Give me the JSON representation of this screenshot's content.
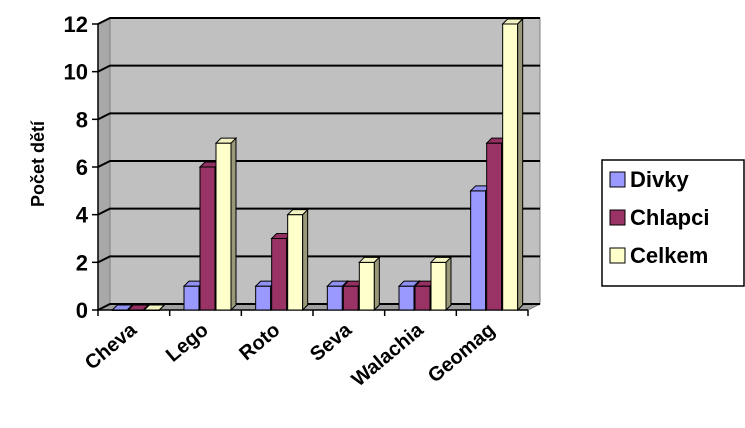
{
  "chart_data": {
    "type": "bar",
    "style": "3d-clustered-column",
    "categories": [
      "Cheva",
      "Lego",
      "Roto",
      "Seva",
      "Walachia",
      "Geomag"
    ],
    "series": [
      {
        "name": "Divky",
        "values": [
          0,
          1,
          1,
          1,
          1,
          5
        ],
        "color": "#9999ff"
      },
      {
        "name": "Chlapci",
        "values": [
          0,
          6,
          3,
          1,
          1,
          7
        ],
        "color": "#993366"
      },
      {
        "name": "Celkem",
        "values": [
          0,
          7,
          4,
          2,
          2,
          12
        ],
        "color": "#ffffcc"
      }
    ],
    "title": "",
    "xlabel": "",
    "ylabel": "Počet dětí",
    "ylim": [
      0,
      12
    ],
    "yticks": [
      0,
      2,
      4,
      6,
      8,
      10,
      12
    ],
    "grid": true,
    "plot_background": "#c0c0c0",
    "legend_position": "right"
  }
}
